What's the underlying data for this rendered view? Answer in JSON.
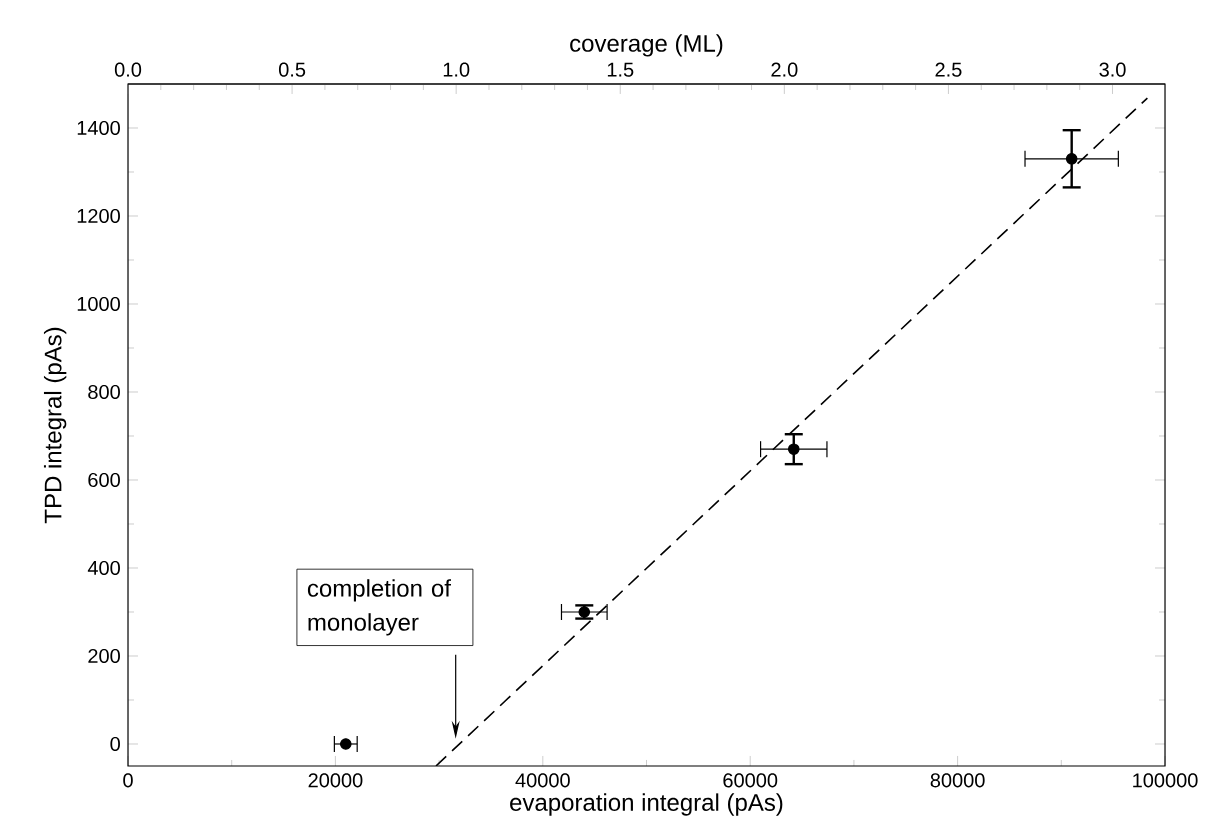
{
  "chart_data": {
    "type": "scatter",
    "xlabel": "evaporation integral (pAs)",
    "ylabel": "TPD integral (pAs)",
    "x2label": "coverage (ML)",
    "series": [
      {
        "color": "#000000",
        "marker": "circle",
        "x": [
          21000,
          44000,
          64200,
          91000
        ],
        "values": [
          0,
          300,
          670,
          1330
        ],
        "errors": [
          null,
          15,
          34,
          65
        ],
        "xerrors": [
          1100,
          2200,
          3200,
          4500
        ]
      },
      {
        "type": "line",
        "color": "#000000",
        "line_style": "dashed",
        "marker": "none",
        "x": [
          29700,
          98300
        ],
        "values": [
          -50,
          1468
        ]
      }
    ],
    "xlim": [
      0,
      100000
    ],
    "xticks": [
      0,
      20000,
      40000,
      60000,
      80000,
      100000
    ],
    "ylim": [
      -50,
      1500
    ],
    "yticks": [
      0,
      200,
      400,
      600,
      800,
      1000,
      1200,
      1400
    ],
    "x2lim": [
      0,
      3.16
    ],
    "x2ticks": [
      {
        "value": 0,
        "label": "0.0"
      },
      {
        "value": 0.5,
        "label": "0.5"
      },
      {
        "value": 1,
        "label": "1.0"
      },
      {
        "value": 1.5,
        "label": "1.5"
      },
      {
        "value": 2,
        "label": "2.0"
      },
      {
        "value": 2.5,
        "label": "2.5"
      },
      {
        "value": 3,
        "label": "3.0"
      }
    ],
    "annotations": [
      "completion of monolayer"
    ]
  }
}
